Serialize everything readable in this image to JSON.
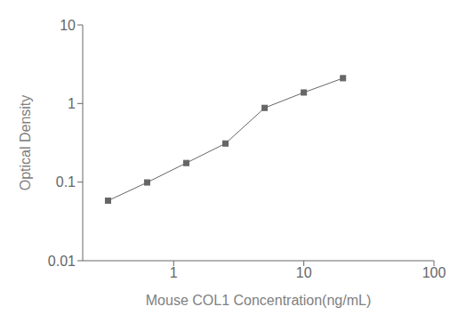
{
  "chart_data": {
    "type": "line",
    "xlabel": "Mouse COL1 Concentration(ng/mL)",
    "ylabel": "Optical Density",
    "x": [
      0.313,
      0.625,
      1.25,
      2.5,
      5.0,
      10.0,
      20.0
    ],
    "values": [
      0.058,
      0.099,
      0.175,
      0.31,
      0.88,
      1.38,
      2.1
    ],
    "xlim": [
      0.2,
      100
    ],
    "ylim": [
      0.01,
      10
    ],
    "xticks": [
      1,
      10,
      100
    ],
    "yticks": [
      0.01,
      0.1,
      1,
      10
    ],
    "log": true,
    "grid": false,
    "color": "#666666",
    "marker": "square"
  }
}
